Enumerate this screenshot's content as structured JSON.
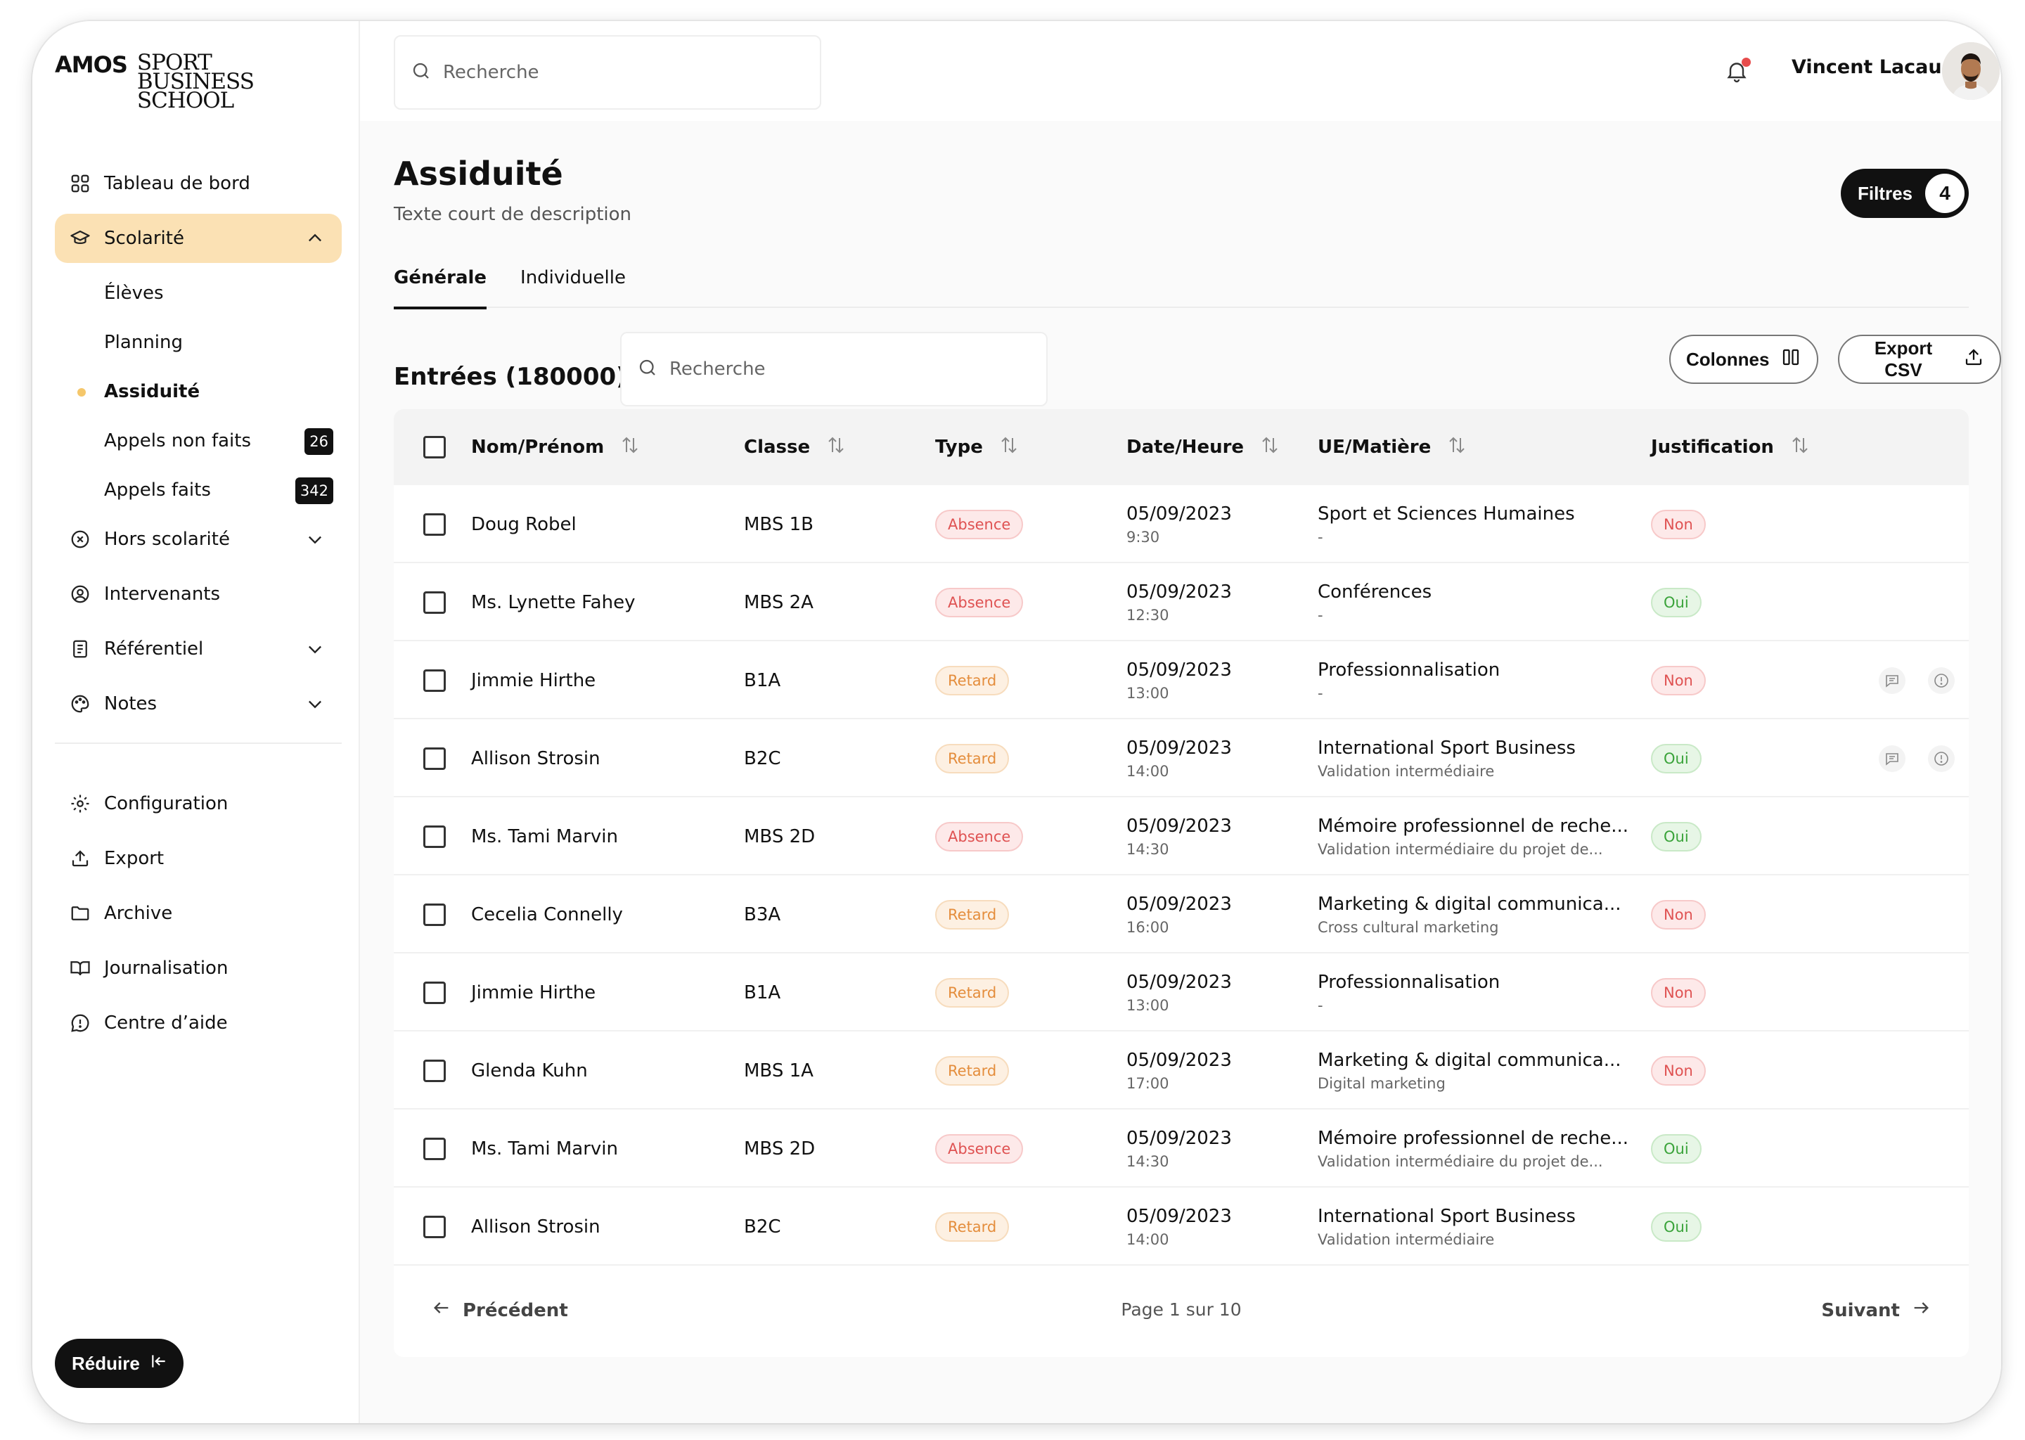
{
  "brand": {
    "name": "AMOS",
    "sub_lines": [
      "SPORT",
      "BUSINESS",
      "SCHOOL"
    ]
  },
  "sidebar": {
    "items": [
      {
        "label": "Tableau de bord",
        "icon": "grid-icon"
      },
      {
        "label": "Scolarité",
        "icon": "graduation-cap-icon",
        "active": true,
        "expanded": true
      },
      {
        "label": "Hors scolarité",
        "icon": "x-circle-icon"
      },
      {
        "label": "Intervenants",
        "icon": "user-circle-icon"
      },
      {
        "label": "Référentiel",
        "icon": "book-list-icon"
      },
      {
        "label": "Notes",
        "icon": "palette-icon"
      }
    ],
    "sub_items": [
      {
        "label": "Élèves"
      },
      {
        "label": "Planning"
      },
      {
        "label": "Assiduité",
        "current": true
      },
      {
        "label": "Appels non faits",
        "badge": "26"
      },
      {
        "label": "Appels faits",
        "badge": "342"
      }
    ],
    "bottom_items": [
      {
        "label": "Configuration",
        "icon": "gear-icon"
      },
      {
        "label": "Export",
        "icon": "upload-icon"
      },
      {
        "label": "Archive",
        "icon": "folder-icon"
      },
      {
        "label": "Journalisation",
        "icon": "open-book-icon"
      },
      {
        "label": "Centre d’aide",
        "icon": "help-bubble-icon"
      }
    ],
    "reduce_label": "Réduire"
  },
  "topbar": {
    "search_placeholder": "Recherche",
    "user_name": "Vincent Lacaud"
  },
  "page": {
    "title": "Assiduité",
    "description": "Texte court de description",
    "filters_label": "Filtres",
    "filters_count": "4",
    "tabs": [
      {
        "label": "Générale",
        "active": true
      },
      {
        "label": "Individuelle",
        "active": false
      }
    ]
  },
  "entries": {
    "title": "Entrées (180000)",
    "search_placeholder": "Recherche",
    "columns_label": "Colonnes",
    "export_label": "Export CSV"
  },
  "table": {
    "headers": [
      "Nom/Prénom",
      "Classe",
      "Type",
      "Date/Heure",
      "UE/Matière",
      "Justification"
    ],
    "rows": [
      {
        "name": "Doug Robel",
        "classe": "MBS 1B",
        "type": "Absence",
        "date": "05/09/2023",
        "time": "9:30",
        "ue": "Sport et Sciences Humaines",
        "ue_sub": "-",
        "justification": "Non",
        "actions": false
      },
      {
        "name": "Ms. Lynette Fahey",
        "classe": "MBS 2A",
        "type": "Absence",
        "date": "05/09/2023",
        "time": "12:30",
        "ue": "Conférences",
        "ue_sub": "-",
        "justification": "Oui",
        "actions": false
      },
      {
        "name": "Jimmie Hirthe",
        "classe": "B1A",
        "type": "Retard",
        "date": "05/09/2023",
        "time": "13:00",
        "ue": "Professionnalisation",
        "ue_sub": "-",
        "justification": "Non",
        "actions": true
      },
      {
        "name": "Allison Strosin",
        "classe": "B2C",
        "type": "Retard",
        "date": "05/09/2023",
        "time": "14:00",
        "ue": "International Sport Business",
        "ue_sub": "Validation intermédiaire",
        "justification": "Oui",
        "actions": true
      },
      {
        "name": "Ms. Tami Marvin",
        "classe": "MBS 2D",
        "type": "Absence",
        "date": "05/09/2023",
        "time": "14:30",
        "ue": "Mémoire professionnel de reche...",
        "ue_sub": "Validation intermédiaire du projet de...",
        "justification": "Oui",
        "actions": false
      },
      {
        "name": "Cecelia Connelly",
        "classe": "B3A",
        "type": "Retard",
        "date": "05/09/2023",
        "time": "16:00",
        "ue": "Marketing & digital communica...",
        "ue_sub": "Cross cultural marketing",
        "justification": "Non",
        "actions": false
      },
      {
        "name": "Jimmie Hirthe",
        "classe": "B1A",
        "type": "Retard",
        "date": "05/09/2023",
        "time": "13:00",
        "ue": "Professionnalisation",
        "ue_sub": "-",
        "justification": "Non",
        "actions": false
      },
      {
        "name": "Glenda Kuhn",
        "classe": "MBS 1A",
        "type": "Retard",
        "date": "05/09/2023",
        "time": "17:00",
        "ue": "Marketing & digital communica...",
        "ue_sub": "Digital marketing",
        "justification": "Non",
        "actions": false
      },
      {
        "name": "Ms. Tami Marvin",
        "classe": "MBS 2D",
        "type": "Absence",
        "date": "05/09/2023",
        "time": "14:30",
        "ue": "Mémoire professionnel de reche...",
        "ue_sub": "Validation intermédiaire du projet de...",
        "justification": "Oui",
        "actions": false
      },
      {
        "name": "Allison Strosin",
        "classe": "B2C",
        "type": "Retard",
        "date": "05/09/2023",
        "time": "14:00",
        "ue": "International Sport Business",
        "ue_sub": "Validation intermédiaire",
        "justification": "Oui",
        "actions": false
      }
    ]
  },
  "pagination": {
    "prev_label": "Précédent",
    "next_label": "Suivant",
    "page_info": "Page 1 sur 10"
  },
  "colors": {
    "accent": "#fbe1b4",
    "dark": "#111111",
    "absence": "#df5252",
    "retard": "#e48d3c",
    "oui": "#3aa33a"
  }
}
